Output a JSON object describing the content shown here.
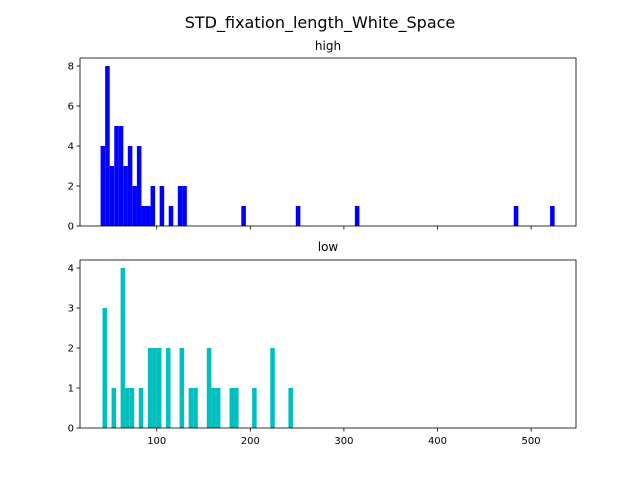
{
  "figure": {
    "suptitle": "STD_fixation_length_White_Space"
  },
  "chart_data": [
    {
      "type": "bar",
      "title": "high",
      "color": "#0000ff",
      "xlim": [
        18,
        548
      ],
      "ylim": [
        0,
        8.4
      ],
      "xticks": [
        100,
        200,
        300,
        400,
        500
      ],
      "xticklabels_visible": false,
      "yticks": [
        0,
        2,
        4,
        6,
        8
      ],
      "bin_width": 4.85,
      "bins": [
        {
          "x": 40.0,
          "count": 4
        },
        {
          "x": 44.9,
          "count": 8
        },
        {
          "x": 49.7,
          "count": 3
        },
        {
          "x": 54.6,
          "count": 5
        },
        {
          "x": 59.4,
          "count": 5
        },
        {
          "x": 64.3,
          "count": 3
        },
        {
          "x": 69.1,
          "count": 4
        },
        {
          "x": 74.0,
          "count": 2
        },
        {
          "x": 78.8,
          "count": 4
        },
        {
          "x": 83.7,
          "count": 1
        },
        {
          "x": 88.5,
          "count": 1
        },
        {
          "x": 93.4,
          "count": 2
        },
        {
          "x": 103.1,
          "count": 2
        },
        {
          "x": 112.8,
          "count": 1
        },
        {
          "x": 122.5,
          "count": 2
        },
        {
          "x": 127.3,
          "count": 2
        },
        {
          "x": 190.4,
          "count": 1
        },
        {
          "x": 248.6,
          "count": 1
        },
        {
          "x": 311.7,
          "count": 1
        },
        {
          "x": 481.5,
          "count": 1
        },
        {
          "x": 520.3,
          "count": 1
        }
      ]
    },
    {
      "type": "bar",
      "title": "low",
      "color": "#00bfbf",
      "xlim": [
        18,
        548
      ],
      "ylim": [
        0,
        4.2
      ],
      "xticks": [
        100,
        200,
        300,
        400,
        500
      ],
      "xticklabels": [
        "100",
        "200",
        "300",
        "400",
        "500"
      ],
      "yticks": [
        0,
        1,
        2,
        3,
        4
      ],
      "bin_width": 4.85,
      "bins": [
        {
          "x": 42.0,
          "count": 3
        },
        {
          "x": 51.7,
          "count": 1
        },
        {
          "x": 61.4,
          "count": 4
        },
        {
          "x": 66.2,
          "count": 1
        },
        {
          "x": 71.1,
          "count": 1
        },
        {
          "x": 80.8,
          "count": 1
        },
        {
          "x": 90.5,
          "count": 2
        },
        {
          "x": 95.3,
          "count": 2
        },
        {
          "x": 100.2,
          "count": 2
        },
        {
          "x": 109.9,
          "count": 2
        },
        {
          "x": 124.4,
          "count": 2
        },
        {
          "x": 134.1,
          "count": 1
        },
        {
          "x": 139.0,
          "count": 1
        },
        {
          "x": 153.5,
          "count": 2
        },
        {
          "x": 158.4,
          "count": 1
        },
        {
          "x": 163.2,
          "count": 1
        },
        {
          "x": 177.8,
          "count": 1
        },
        {
          "x": 182.6,
          "count": 1
        },
        {
          "x": 201.9,
          "count": 1
        },
        {
          "x": 221.3,
          "count": 2
        },
        {
          "x": 240.7,
          "count": 1
        }
      ]
    }
  ]
}
